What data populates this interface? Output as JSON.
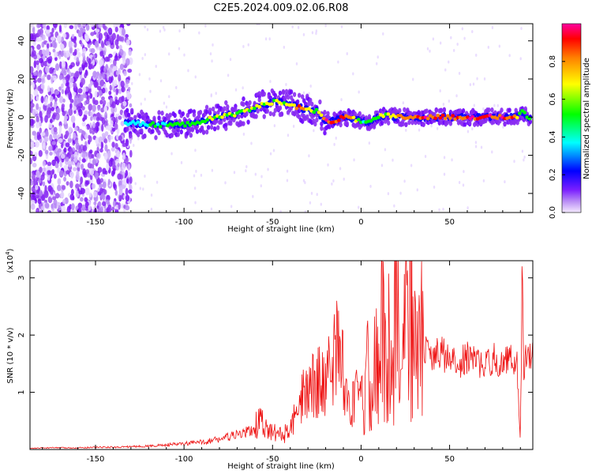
{
  "figure": {
    "title": "C2E5.2024.009.02.06.R08"
  },
  "chart_data": [
    {
      "type": "heatmap",
      "xlabel": "Height of straight line (km)",
      "ylabel": "Frequency (Hz)",
      "xlim": [
        -187,
        97
      ],
      "ylim": [
        -50,
        49
      ],
      "xticks": [
        -150,
        -100,
        -50,
        0,
        50
      ],
      "yticks": [
        -40,
        -20,
        0,
        20,
        40
      ],
      "colorbar": {
        "label": "Normalized spectral amplitude",
        "range": [
          0,
          1
        ],
        "ticks": [
          "0.0",
          "0.2",
          "0.4",
          "0.6",
          "0.8"
        ],
        "colors": [
          "#f4eaff",
          "#9a4cf0",
          "#6a00ff",
          "#0000ff",
          "#00ffff",
          "#00ff00",
          "#ffff00",
          "#ff8000",
          "#ff0000",
          "#ff00a0"
        ]
      },
      "ridge": {
        "x": [
          -133,
          -120,
          -100,
          -90,
          -80,
          -70,
          -60,
          -50,
          -45,
          -40,
          -35,
          -30,
          -25,
          -20,
          -15,
          -10,
          0,
          5,
          10,
          15,
          20,
          30,
          40,
          50,
          60,
          70,
          80,
          88,
          90,
          95
        ],
        "y": [
          -3,
          -4,
          -4,
          -2,
          0,
          2,
          5,
          8,
          8,
          7,
          5,
          4,
          3,
          -2,
          -2,
          0,
          -2,
          -3,
          0,
          1,
          0,
          0,
          0,
          0,
          0,
          0,
          0,
          0,
          3,
          0
        ],
        "amplitude": [
          0.35,
          0.4,
          0.45,
          0.5,
          0.55,
          0.55,
          0.55,
          0.6,
          0.6,
          0.65,
          0.85,
          0.6,
          0.55,
          0.9,
          0.95,
          0.95,
          0.45,
          0.45,
          0.5,
          0.6,
          0.7,
          0.85,
          0.95,
          0.95,
          0.95,
          0.95,
          0.9,
          0.85,
          0.5,
          0.5
        ]
      }
    },
    {
      "type": "line",
      "xlabel": "Height of straight line (km)",
      "ylabel": "SNR (10 * v/v)",
      "yscale_label": "(x10",
      "yscale_exp": "4",
      "yscale_close": ")",
      "xlim": [
        -187,
        97
      ],
      "ylim": [
        0,
        3.3
      ],
      "xticks": [
        -150,
        -100,
        -50,
        0,
        50
      ],
      "yticks": [
        1,
        2,
        3
      ],
      "series": [
        {
          "color": "#ee1111",
          "x": [
            -187,
            -175,
            -160,
            -150,
            -140,
            -130,
            -120,
            -110,
            -100,
            -90,
            -80,
            -75,
            -70,
            -65,
            -60,
            -57,
            -55,
            -50,
            -45,
            -40,
            -38,
            -35,
            -33,
            -30,
            -25,
            -20,
            -18,
            -15,
            -12,
            -10,
            -8,
            -5,
            -3,
            0,
            2,
            5,
            8,
            10,
            12,
            15,
            17,
            18,
            20,
            22,
            25,
            28,
            30,
            32,
            35,
            40,
            45,
            50,
            55,
            60,
            65,
            70,
            75,
            80,
            85,
            88,
            90,
            91,
            92,
            93,
            95,
            97
          ],
          "y": [
            0.02,
            0.03,
            0.03,
            0.04,
            0.04,
            0.05,
            0.06,
            0.08,
            0.1,
            0.13,
            0.18,
            0.22,
            0.25,
            0.3,
            0.35,
            0.6,
            0.35,
            0.3,
            0.25,
            0.32,
            0.5,
            0.6,
            0.9,
            1.05,
            1.2,
            1.1,
            1.8,
            1.55,
            2.0,
            1.3,
            0.95,
            0.7,
            0.8,
            0.7,
            1.0,
            1.4,
            1.7,
            1.25,
            2.1,
            1.3,
            2.65,
            1.5,
            3.2,
            1.6,
            1.9,
            2.7,
            1.5,
            1.9,
            1.8,
            1.6,
            1.7,
            1.55,
            1.5,
            1.6,
            1.55,
            1.45,
            1.6,
            1.5,
            1.6,
            1.55,
            0.15,
            3.0,
            1.4,
            1.7,
            1.6,
            1.6
          ]
        }
      ]
    }
  ]
}
